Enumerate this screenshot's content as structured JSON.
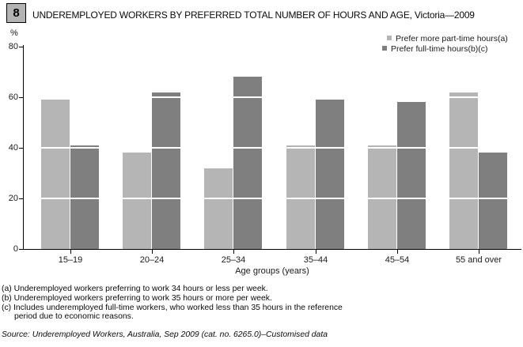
{
  "figure": {
    "number": "8",
    "title": "UNDEREMPLOYED WORKERS BY PREFERRED TOTAL NUMBER OF HOURS AND AGE, Victoria—2009"
  },
  "y_axis": {
    "unit": "%"
  },
  "legend": [
    {
      "label": "Prefer more part-time hours(a)",
      "color": "#b5b5b5"
    },
    {
      "label": "Prefer full-time hours(b)(c)",
      "color": "#7f7f7f"
    }
  ],
  "chart_data": {
    "type": "bar",
    "categories": [
      "15–19",
      "20–24",
      "25–34",
      "35–44",
      "45–54",
      "55 and over"
    ],
    "series": [
      {
        "name": "Prefer more part-time hours(a)",
        "color": "#b5b5b5",
        "values": [
          59,
          38,
          32,
          41,
          41,
          62
        ]
      },
      {
        "name": "Prefer full-time hours(b)(c)",
        "color": "#7f7f7f",
        "values": [
          41,
          62,
          68,
          59,
          58,
          38
        ]
      }
    ],
    "title": "UNDEREMPLOYED WORKERS BY PREFERRED TOTAL NUMBER OF HOURS AND AGE, Victoria—2009",
    "xlabel": "Age groups (years)",
    "ylabel": "%",
    "ylim": [
      0,
      80
    ],
    "yticks": [
      0,
      20,
      40,
      60,
      80
    ],
    "white_gridlines_over_bars": [
      20,
      40,
      60
    ],
    "legend_position": "top-right",
    "grid": false
  },
  "footnotes": [
    "(a) Underemployed workers preferring to work 34 hours or less per week.",
    "(b) Underemployed workers preferring to work 35 hours or more per week.",
    "(c) Includes underemployed full-time workers, who worked less than 35 hours in the reference period due to economic reasons."
  ],
  "source": "Source: Underemployed Workers, Australia, Sep 2009 (cat. no. 6265.0)–Customised data"
}
